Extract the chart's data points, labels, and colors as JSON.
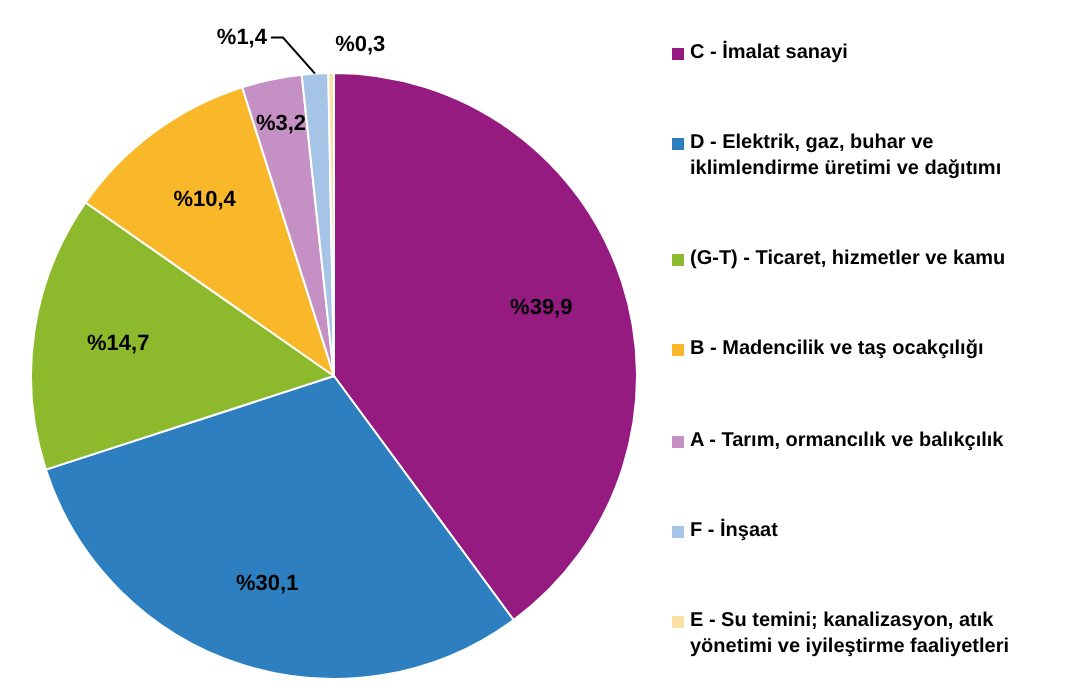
{
  "chart_data": {
    "type": "pie",
    "categories": [
      "C - İmalat sanayi",
      "D - Elektrik, gaz, buhar ve iklimlendirme üretimi ve dağıtımı",
      "(G-T) - Ticaret, hizmetler ve kamu",
      "B - Madencilik ve taş ocakçılığı",
      "A - Tarım, ormancılık ve balıkçılık",
      "F - İnşaat",
      "E - Su temini; kanalizasyon, atık yönetimi ve iyileştirme faaliyetleri"
    ],
    "values": [
      39.9,
      30.1,
      14.7,
      10.4,
      3.2,
      1.4,
      0.3
    ],
    "value_labels": [
      "%39,9",
      "%30,1",
      "%14,7",
      "%10,4",
      "%3,2",
      "%1,4",
      "%0,3"
    ],
    "colors": [
      "#951b81",
      "#2e7fbf",
      "#8dba2c",
      "#f8b82a",
      "#c591c5",
      "#a6c4e6",
      "#fbe0a6"
    ],
    "legend": "right"
  }
}
